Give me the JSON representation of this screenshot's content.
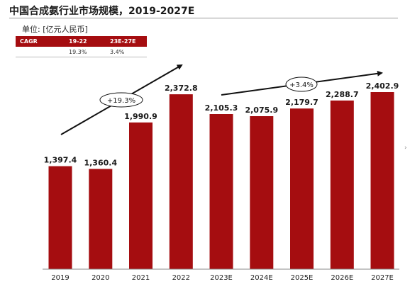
{
  "header": {
    "title": "中国合成氨行业市场规模，2019-2027E",
    "unit": "单位: [亿元人民币]"
  },
  "cagr_table": {
    "headers": [
      "CAGR",
      "19-22",
      "23E-27E"
    ],
    "row": [
      "",
      "19.3%",
      "3.4%"
    ]
  },
  "annotations": {
    "growth_1": "+19.3%",
    "growth_2": "+3.4%"
  },
  "colors": {
    "bar": "#a50d10",
    "table_header": "#a50d10"
  },
  "side_mark": "›",
  "chart_data": {
    "type": "bar",
    "title": "中国合成氨行业市场规模，2019-2027E",
    "ylabel": "",
    "xlabel": "",
    "categories": [
      "2019",
      "2020",
      "2021",
      "2022",
      "2023E",
      "2024E",
      "2025E",
      "2026E",
      "2027E"
    ],
    "values": [
      1397.4,
      1360.4,
      1990.9,
      2372.8,
      2105.3,
      2075.9,
      2179.7,
      2288.7,
      2402.9
    ],
    "value_labels": [
      "1,397.4",
      "1,360.4",
      "1,990.9",
      "2,372.8",
      "2,105.3",
      "2,075.9",
      "2,179.7",
      "2,288.7",
      "2,402.9"
    ],
    "ylim": [
      0,
      2402.9
    ],
    "grid": false,
    "legend": "none"
  }
}
